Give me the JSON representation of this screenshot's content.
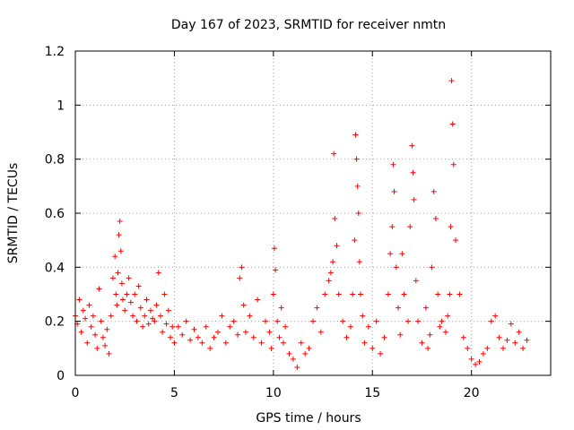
{
  "chart_data": {
    "type": "scatter",
    "title": "Day 167 of 2023, SRMTID for receiver nmtn",
    "xlabel": "GPS time / hours",
    "ylabel": "SRMTID / TECUs",
    "xlim": [
      0,
      24
    ],
    "ylim": [
      0,
      1.2
    ],
    "x_ticks": [
      0,
      5,
      10,
      15,
      20
    ],
    "x_tick_labels": [
      "0",
      "5",
      "10",
      "15",
      "20"
    ],
    "y_ticks": [
      0,
      0.2,
      0.4,
      0.6,
      0.8,
      1.0,
      1.2
    ],
    "y_tick_labels": [
      "0",
      "0.2",
      "0.4",
      "0.6",
      "0.8",
      "1",
      "1.2"
    ],
    "grid": true,
    "marker": "plus",
    "series": [
      {
        "name": "SRMTID",
        "color": "#ff0000",
        "x": [
          0.0,
          0.1,
          0.2,
          0.3,
          0.4,
          0.5,
          0.6,
          0.7,
          0.8,
          0.9,
          1.0,
          1.1,
          1.2,
          1.3,
          1.4,
          1.5,
          1.6,
          1.7,
          1.8,
          1.9,
          2.0,
          2.05,
          2.1,
          2.15,
          2.2,
          2.25,
          2.3,
          2.35,
          2.4,
          2.5,
          2.6,
          2.7,
          2.8,
          2.9,
          3.0,
          3.1,
          3.2,
          3.3,
          3.4,
          3.5,
          3.6,
          3.7,
          3.8,
          3.9,
          4.0,
          4.1,
          4.2,
          4.3,
          4.4,
          4.5,
          4.6,
          4.7,
          4.8,
          4.9,
          5.0,
          5.2,
          5.4,
          5.6,
          5.8,
          6.0,
          6.2,
          6.4,
          6.6,
          6.8,
          7.0,
          7.2,
          7.4,
          7.6,
          7.8,
          8.0,
          8.2,
          8.3,
          8.4,
          8.5,
          8.6,
          8.8,
          9.0,
          9.2,
          9.4,
          9.6,
          9.8,
          9.9,
          10.0,
          10.05,
          10.1,
          10.2,
          10.3,
          10.4,
          10.5,
          10.6,
          10.8,
          11.0,
          11.2,
          11.4,
          11.6,
          11.8,
          12.0,
          12.2,
          12.4,
          12.6,
          12.8,
          12.9,
          13.0,
          13.05,
          13.1,
          13.2,
          13.3,
          13.5,
          13.7,
          13.9,
          14.0,
          14.1,
          14.15,
          14.2,
          14.25,
          14.3,
          14.35,
          14.4,
          14.5,
          14.6,
          14.8,
          15.0,
          15.2,
          15.4,
          15.6,
          15.8,
          15.9,
          16.0,
          16.05,
          16.1,
          16.2,
          16.3,
          16.4,
          16.5,
          16.6,
          16.8,
          16.9,
          17.0,
          17.05,
          17.1,
          17.2,
          17.3,
          17.5,
          17.7,
          17.8,
          17.9,
          18.0,
          18.1,
          18.2,
          18.3,
          18.4,
          18.5,
          18.7,
          18.8,
          18.9,
          18.95,
          19.0,
          19.05,
          19.1,
          19.2,
          19.4,
          19.6,
          19.8,
          20.0,
          20.2,
          20.4,
          20.6,
          20.8,
          21.0,
          21.2,
          21.4,
          21.6,
          21.8,
          22.0,
          22.2,
          22.4,
          22.6,
          22.8
        ],
        "y": [
          0.22,
          0.19,
          0.28,
          0.16,
          0.24,
          0.21,
          0.12,
          0.26,
          0.18,
          0.22,
          0.15,
          0.1,
          0.32,
          0.2,
          0.14,
          0.11,
          0.17,
          0.08,
          0.22,
          0.36,
          0.44,
          0.3,
          0.26,
          0.38,
          0.52,
          0.57,
          0.46,
          0.34,
          0.28,
          0.24,
          0.3,
          0.36,
          0.27,
          0.22,
          0.3,
          0.2,
          0.33,
          0.25,
          0.18,
          0.22,
          0.28,
          0.19,
          0.24,
          0.21,
          0.2,
          0.26,
          0.38,
          0.22,
          0.16,
          0.3,
          0.19,
          0.24,
          0.14,
          0.18,
          0.12,
          0.18,
          0.15,
          0.2,
          0.13,
          0.17,
          0.14,
          0.12,
          0.18,
          0.1,
          0.14,
          0.16,
          0.22,
          0.12,
          0.18,
          0.2,
          0.15,
          0.36,
          0.4,
          0.26,
          0.16,
          0.22,
          0.14,
          0.28,
          0.12,
          0.2,
          0.16,
          0.1,
          0.3,
          0.47,
          0.39,
          0.2,
          0.14,
          0.25,
          0.12,
          0.18,
          0.08,
          0.06,
          0.03,
          0.12,
          0.08,
          0.1,
          0.2,
          0.25,
          0.16,
          0.3,
          0.35,
          0.38,
          0.42,
          0.82,
          0.58,
          0.48,
          0.3,
          0.2,
          0.14,
          0.18,
          0.3,
          0.5,
          0.89,
          0.8,
          0.7,
          0.6,
          0.42,
          0.3,
          0.22,
          0.12,
          0.18,
          0.1,
          0.2,
          0.08,
          0.14,
          0.3,
          0.45,
          0.55,
          0.78,
          0.68,
          0.4,
          0.25,
          0.15,
          0.45,
          0.3,
          0.2,
          0.55,
          0.85,
          0.75,
          0.65,
          0.35,
          0.2,
          0.12,
          0.25,
          0.1,
          0.15,
          0.4,
          0.68,
          0.58,
          0.3,
          0.18,
          0.2,
          0.16,
          0.22,
          0.3,
          0.55,
          1.09,
          0.93,
          0.78,
          0.5,
          0.3,
          0.14,
          0.1,
          0.06,
          0.04,
          0.05,
          0.08,
          0.1,
          0.2,
          0.22,
          0.14,
          0.1,
          0.13,
          0.19,
          0.12,
          0.16,
          0.1,
          0.13
        ]
      }
    ]
  }
}
